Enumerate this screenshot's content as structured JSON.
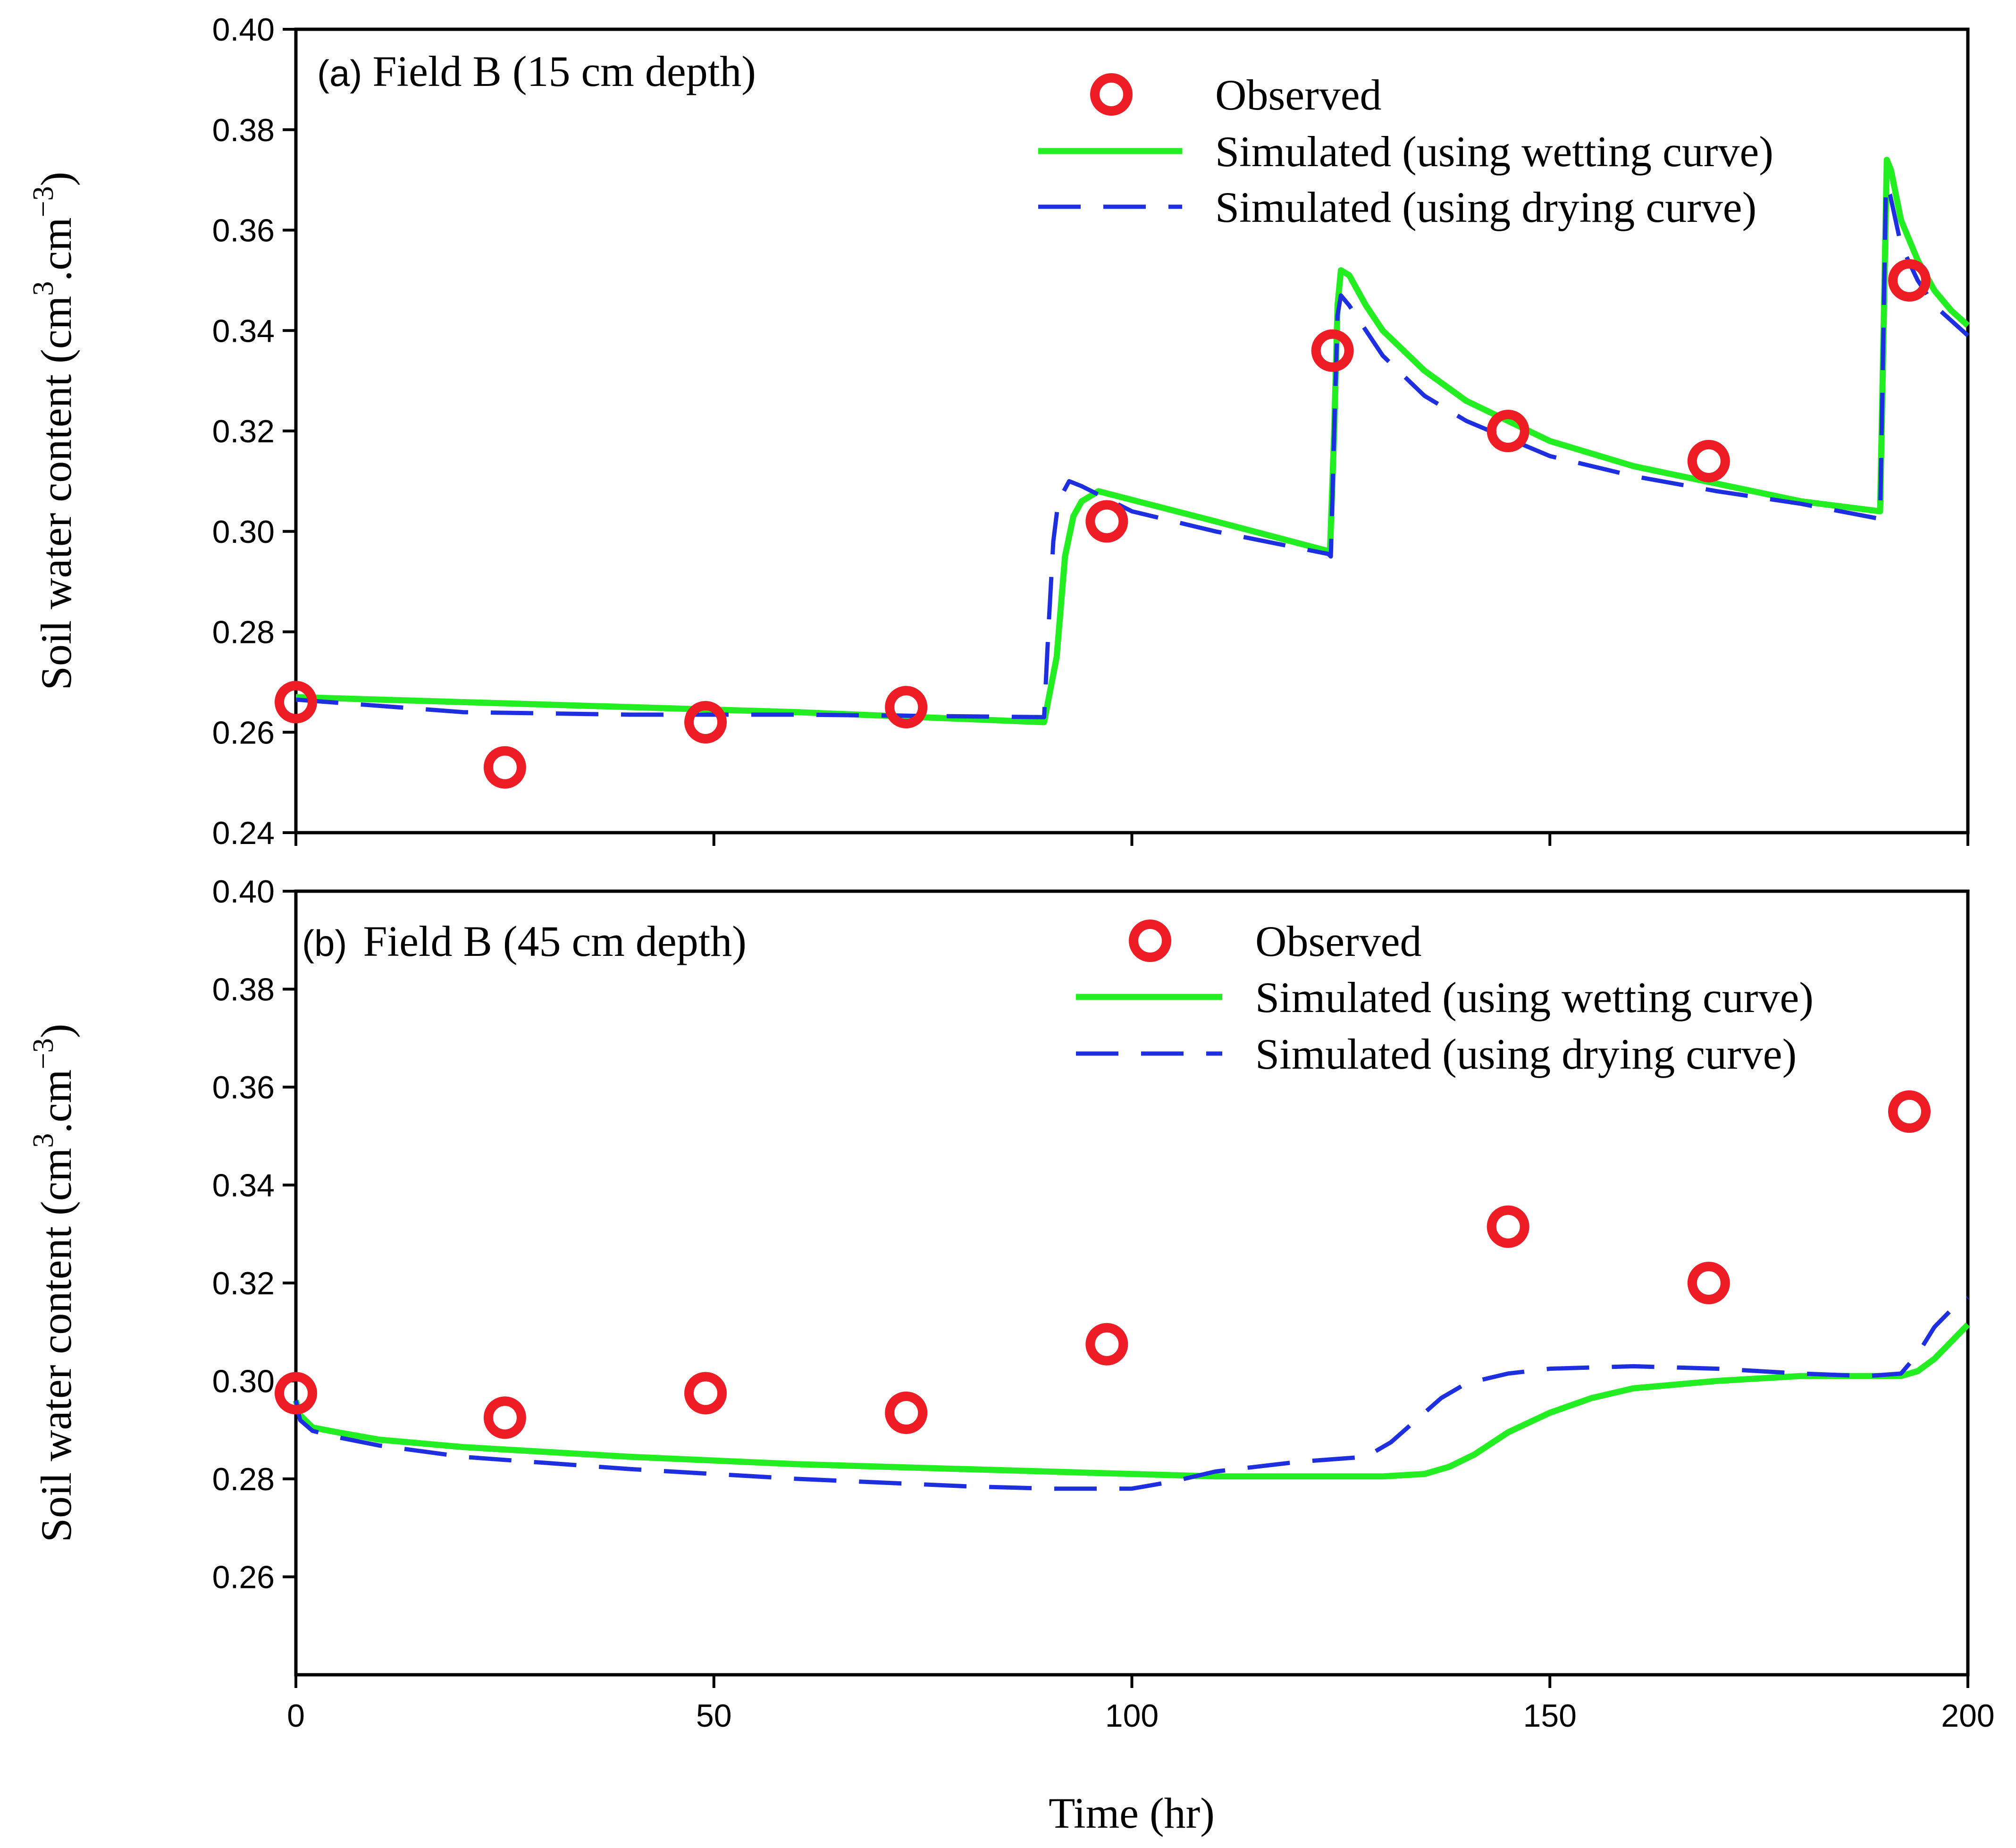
{
  "colors": {
    "observed": "#ee1c25",
    "wetting": "#22ee22",
    "drying": "#1e2fe0",
    "axis": "#000000"
  },
  "chart_data": [
    {
      "type": "line",
      "panel_label": "(a)",
      "title": "Field B (15 cm depth)",
      "xlabel": "Time (hr)",
      "ylabel": "Soil water content (cm3.cm-3)",
      "ylabel_parts": {
        "main": "Soil water content (cm",
        "sup1": "3",
        "mid": ".cm",
        "sup2": "−3",
        "end": ")"
      },
      "xlim": [
        0,
        200
      ],
      "ylim": [
        0.24,
        0.4
      ],
      "xticks": [
        0,
        50,
        100,
        150,
        200
      ],
      "yticks": [
        0.24,
        0.26,
        0.28,
        0.3,
        0.32,
        0.34,
        0.36,
        0.38,
        0.4
      ],
      "ytick_labels": [
        "0.24",
        "0.26",
        "0.28",
        "0.30",
        "0.32",
        "0.34",
        "0.36",
        "0.38",
        "0.40"
      ],
      "legend": [
        "Observed",
        "Simulated (using wetting curve)",
        "Simulated (using drying curve)"
      ],
      "legend_position": "top-right",
      "series": [
        {
          "name": "Observed",
          "style": "marker",
          "x": [
            0,
            25,
            49,
            73,
            97,
            124,
            145,
            169,
            193
          ],
          "y": [
            0.266,
            0.253,
            0.262,
            0.265,
            0.302,
            0.336,
            0.32,
            0.314,
            0.35
          ]
        },
        {
          "name": "Simulated (using wetting curve)",
          "style": "solid",
          "x": [
            0,
            30,
            60,
            89.5,
            91,
            92,
            93,
            94,
            96,
            110,
            123.7,
            124.2,
            124.6,
            125,
            126,
            128,
            130,
            135,
            140,
            150,
            160,
            170,
            180,
            189.5,
            189.8,
            190.3,
            190.8,
            192,
            194,
            196,
            198,
            200
          ],
          "y": [
            0.267,
            0.2655,
            0.264,
            0.262,
            0.275,
            0.295,
            0.303,
            0.306,
            0.308,
            0.302,
            0.296,
            0.32,
            0.345,
            0.352,
            0.351,
            0.345,
            0.34,
            0.332,
            0.326,
            0.318,
            0.313,
            0.3095,
            0.306,
            0.304,
            0.33,
            0.374,
            0.372,
            0.362,
            0.354,
            0.348,
            0.344,
            0.341
          ]
        },
        {
          "name": "Simulated (using drying curve)",
          "style": "dashed",
          "x": [
            0,
            20,
            40,
            60,
            89.5,
            90,
            90.6,
            91.2,
            92.5,
            94,
            100,
            110,
            123.5,
            123.8,
            124.2,
            124.6,
            125,
            126,
            128,
            130,
            135,
            140,
            150,
            160,
            170,
            180,
            189.5,
            189.8,
            190.2,
            190.7,
            192,
            194,
            196,
            198,
            200
          ],
          "y": [
            0.2665,
            0.264,
            0.2635,
            0.2635,
            0.263,
            0.28,
            0.298,
            0.306,
            0.31,
            0.309,
            0.304,
            0.3,
            0.2955,
            0.295,
            0.32,
            0.343,
            0.347,
            0.345,
            0.34,
            0.335,
            0.327,
            0.322,
            0.315,
            0.311,
            0.308,
            0.3055,
            0.3025,
            0.33,
            0.369,
            0.367,
            0.357,
            0.35,
            0.345,
            0.342,
            0.339
          ]
        }
      ]
    },
    {
      "type": "line",
      "panel_label": "(b)",
      "title": "Field B (45 cm depth)",
      "xlabel": "Time (hr)",
      "ylabel": "Soil water content (cm3.cm-3)",
      "ylabel_parts": {
        "main": "Soil water content (cm",
        "sup1": "3",
        "mid": ".cm",
        "sup2": "−3",
        "end": ")"
      },
      "xlim": [
        0,
        200
      ],
      "ylim": [
        0.24,
        0.4
      ],
      "xticks": [
        0,
        50,
        100,
        150,
        200
      ],
      "xtick_labels": [
        "0",
        "50",
        "100",
        "150",
        "200"
      ],
      "yticks": [
        0.26,
        0.28,
        0.3,
        0.32,
        0.34,
        0.36,
        0.38,
        0.4
      ],
      "ytick_labels": [
        "0.26",
        "0.28",
        "0.30",
        "0.32",
        "0.34",
        "0.36",
        "0.38",
        "0.40"
      ],
      "legend": [
        "Observed",
        "Simulated (using wetting curve)",
        "Simulated (using drying curve)"
      ],
      "legend_position": "top-right",
      "series": [
        {
          "name": "Observed",
          "style": "marker",
          "x": [
            0,
            25,
            49,
            73,
            97,
            145,
            169,
            193
          ],
          "y": [
            0.2975,
            0.2925,
            0.2975,
            0.2935,
            0.3075,
            0.3315,
            0.32,
            0.355
          ]
        },
        {
          "name": "Simulated (using wetting curve)",
          "style": "solid",
          "x": [
            0,
            0.5,
            2,
            5,
            10,
            20,
            40,
            60,
            80,
            100,
            110,
            120,
            130,
            135,
            138,
            141,
            145,
            150,
            155,
            160,
            170,
            180,
            188,
            192,
            194,
            196,
            198,
            200
          ],
          "y": [
            0.296,
            0.293,
            0.2905,
            0.2895,
            0.288,
            0.2865,
            0.2845,
            0.283,
            0.282,
            0.281,
            0.2805,
            0.2805,
            0.2805,
            0.281,
            0.2825,
            0.285,
            0.2895,
            0.2935,
            0.2965,
            0.2985,
            0.3,
            0.301,
            0.301,
            0.301,
            0.302,
            0.3045,
            0.308,
            0.3115
          ]
        },
        {
          "name": "Simulated (using drying curve)",
          "style": "dashed",
          "x": [
            0,
            0.5,
            2,
            5,
            10,
            20,
            40,
            60,
            80,
            90,
            100,
            105,
            110,
            120,
            128,
            131,
            134,
            137,
            140,
            145,
            150,
            160,
            170,
            180,
            188,
            192,
            194,
            196,
            198,
            200
          ],
          "y": [
            0.296,
            0.292,
            0.2898,
            0.2885,
            0.2868,
            0.2845,
            0.282,
            0.28,
            0.2785,
            0.278,
            0.278,
            0.2795,
            0.2815,
            0.2835,
            0.2845,
            0.2875,
            0.292,
            0.2965,
            0.2995,
            0.3015,
            0.3025,
            0.303,
            0.3025,
            0.3015,
            0.301,
            0.3015,
            0.3055,
            0.311,
            0.3145,
            0.317
          ]
        }
      ]
    }
  ]
}
